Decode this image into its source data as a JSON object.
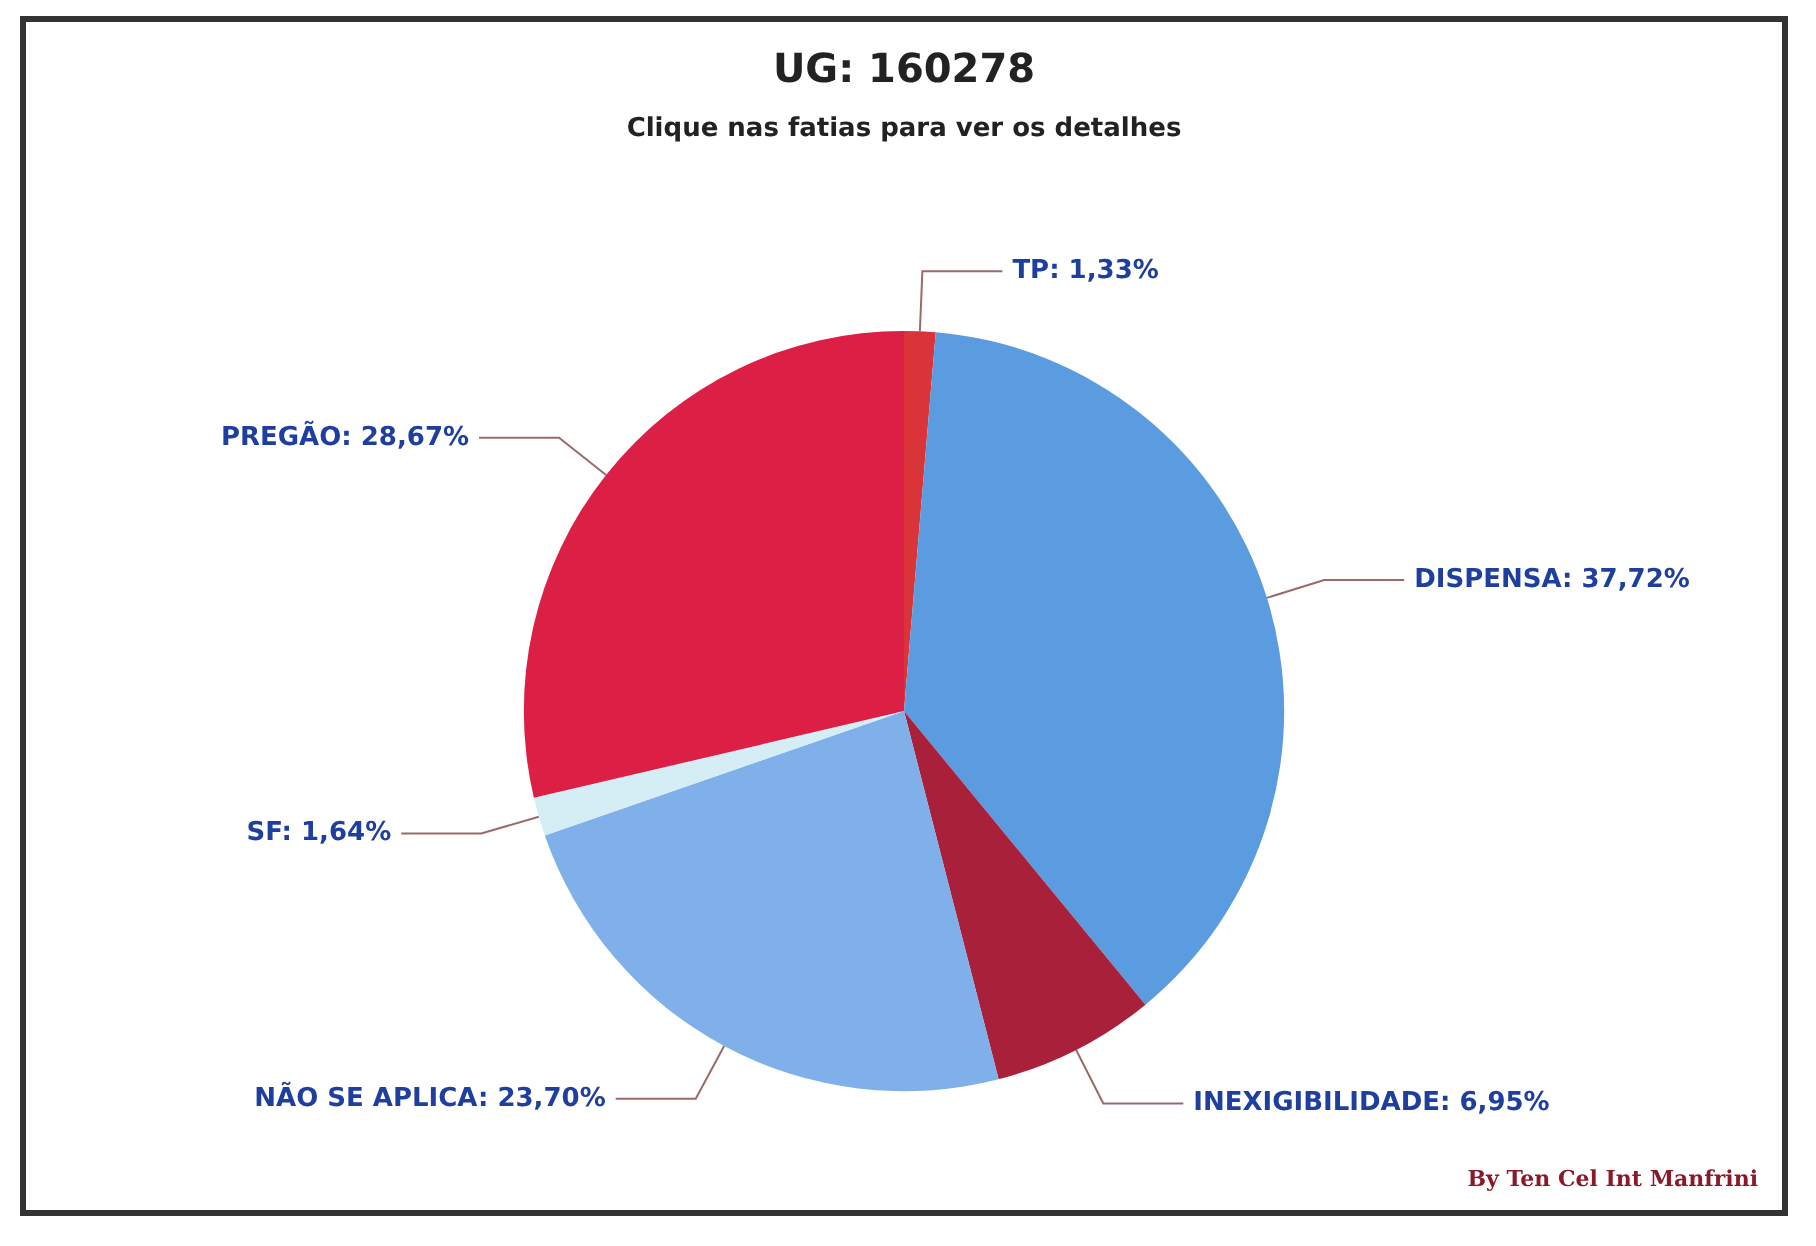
{
  "chart_data": {
    "type": "pie",
    "title": "UG: 160278",
    "subtitle": "Clique nas fatias para ver os detalhes",
    "categories": [
      "TP",
      "DISPENSA",
      "INEXIGIBILIDADE",
      "NÃO SE APLICA",
      "SF",
      "PREGÃO"
    ],
    "values": [
      1.33,
      37.72,
      6.95,
      23.7,
      1.64,
      28.67
    ],
    "colors": [
      "#d9343a",
      "#5b9be0",
      "#a8203a",
      "#7fb0ea",
      "#d5eef5",
      "#dc1f45"
    ],
    "value_labels": [
      "1,33%",
      "37,72%",
      "6,95%",
      "23,70%",
      "1,64%",
      "28,67%"
    ],
    "annotations": [
      "By Ten Cel Int Manfrini"
    ],
    "legend": false
  }
}
